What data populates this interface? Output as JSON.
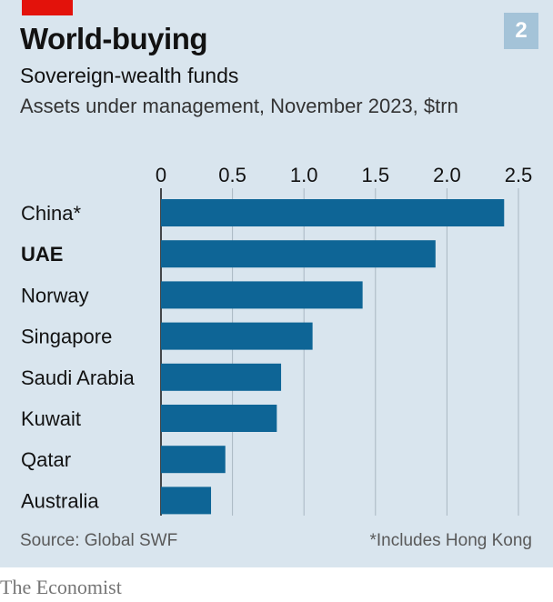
{
  "header": {
    "title": "World-buying",
    "badge": "2",
    "subtitle": "Sovereign-wealth funds",
    "description": "Assets under management, November 2023, $trn"
  },
  "footer": {
    "source": "Source: Global SWF",
    "footnote": "*Includes Hong Kong",
    "brand": "The Economist"
  },
  "colors": {
    "bar": "#0e6596",
    "background": "#d9e5ee",
    "accent": "#e3120b",
    "gridline": "#a9b7c2"
  },
  "chart_data": {
    "type": "bar",
    "orientation": "horizontal",
    "categories": [
      "China*",
      "UAE",
      "Norway",
      "Singapore",
      "Saudi Arabia",
      "Kuwait",
      "Qatar",
      "Australia"
    ],
    "values": [
      2.4,
      1.92,
      1.41,
      1.06,
      0.84,
      0.81,
      0.45,
      0.35
    ],
    "highlighted_category": "UAE",
    "xticks": [
      "0",
      "0.5",
      "1.0",
      "1.5",
      "2.0",
      "2.5"
    ],
    "xtick_values": [
      0,
      0.5,
      1.0,
      1.5,
      2.0,
      2.5
    ],
    "xlim": [
      0,
      2.5
    ],
    "grid": true,
    "xaxis_position": "top"
  }
}
